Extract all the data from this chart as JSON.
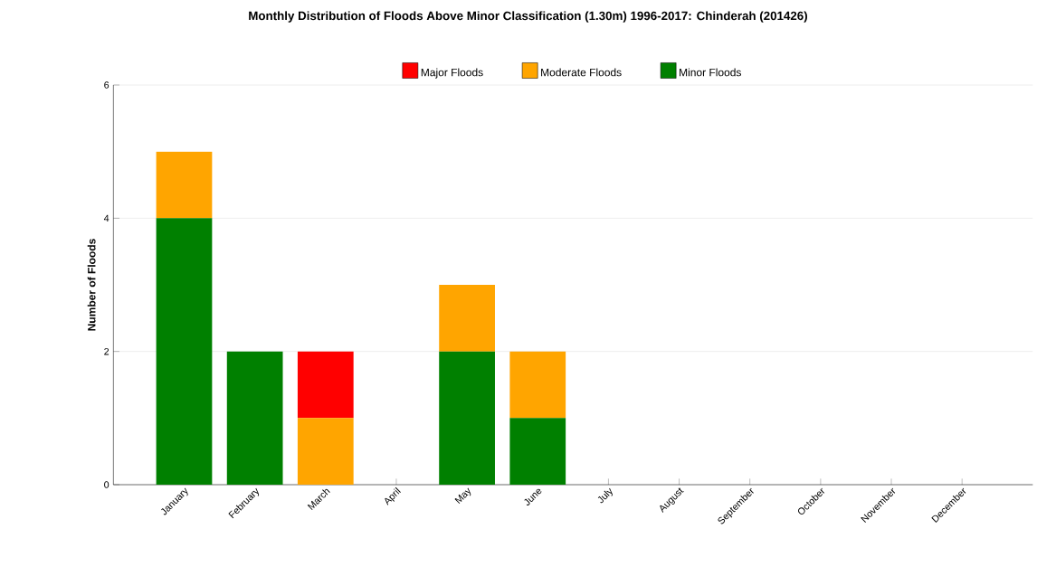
{
  "chart_data": {
    "type": "bar",
    "title": "Monthly Distribution of Floods Above Minor Classification (1.30m) 1996-2017: Chinderah (201426)",
    "ylabel": "Number of Floods",
    "categories": [
      "January",
      "February",
      "March",
      "April",
      "May",
      "June",
      "July",
      "August",
      "September",
      "October",
      "November",
      "December"
    ],
    "stacked": true,
    "series": [
      {
        "name": "Minor Floods",
        "color": "#008000",
        "values": [
          4,
          2,
          0,
          0,
          2,
          1,
          0,
          0,
          0,
          0,
          0,
          0
        ]
      },
      {
        "name": "Moderate Floods",
        "color": "#ffa500",
        "values": [
          1,
          0,
          1,
          0,
          1,
          1,
          0,
          0,
          0,
          0,
          0,
          0
        ]
      },
      {
        "name": "Major Floods",
        "color": "#ff0000",
        "values": [
          0,
          0,
          1,
          0,
          0,
          0,
          0,
          0,
          0,
          0,
          0,
          0
        ]
      }
    ],
    "ylim": [
      0,
      6
    ],
    "yticks": [
      0,
      2,
      4,
      6
    ],
    "grid": "y",
    "legend": "top"
  }
}
